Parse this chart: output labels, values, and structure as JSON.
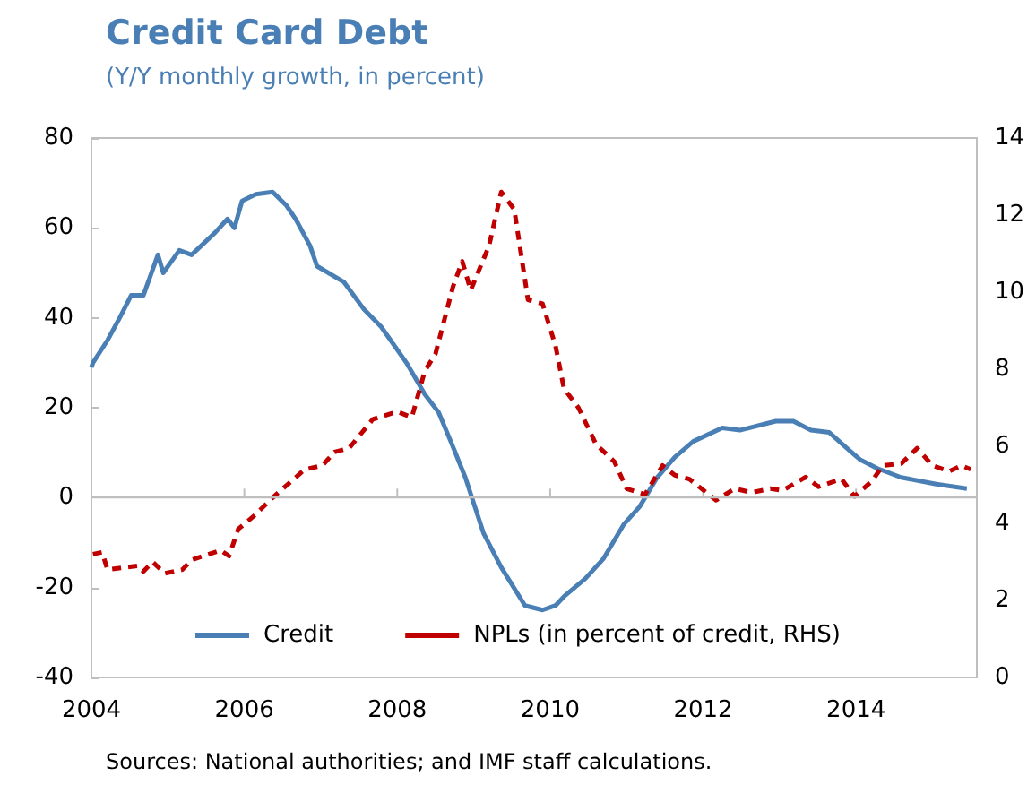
{
  "chart_data": {
    "type": "line",
    "title": "Credit Card Debt",
    "subtitle": "(Y/Y monthly growth, in percent)",
    "annotations": [
      "Sources: National authorities; and IMF staff calculations."
    ],
    "xlim": [
      2004,
      2015.58
    ],
    "xticks": [
      2004,
      2006,
      2008,
      2010,
      2012,
      2014
    ],
    "ylim": [
      -40,
      80
    ],
    "yticks": [
      -40,
      -20,
      0,
      20,
      40,
      60,
      80
    ],
    "y2lim": [
      0,
      14
    ],
    "y2ticks": [
      0,
      2,
      4,
      6,
      8,
      10,
      12,
      14
    ],
    "grid": false,
    "legend": "bottom",
    "marker": "none",
    "ref_lines": [
      {
        "axis": "y",
        "value": 0,
        "color": "#bfbfbf"
      }
    ],
    "series": [
      {
        "name": "Credit",
        "color": "#4a7fb5",
        "line_style": "solid",
        "x": [
          2004.0,
          2004.02,
          2004.21,
          2004.37,
          2004.52,
          2004.68,
          2004.87,
          2004.94,
          2005.15,
          2005.31,
          2005.62,
          2005.78,
          2005.87,
          2005.97,
          2006.15,
          2006.37,
          2006.55,
          2006.67,
          2006.86,
          2006.95,
          2007.3,
          2007.56,
          2007.79,
          2008.12,
          2008.36,
          2008.54,
          2008.7,
          2008.89,
          2009.13,
          2009.36,
          2009.67,
          2009.9,
          2010.07,
          2010.18,
          2010.46,
          2010.7,
          2010.96,
          2011.17,
          2011.4,
          2011.63,
          2011.87,
          2012.25,
          2012.48,
          2012.95,
          2013.18,
          2013.41,
          2013.65,
          2013.88,
          2014.05,
          2014.28,
          2014.59,
          2015.05,
          2015.45
        ],
        "values": [
          29,
          30,
          35,
          40,
          45,
          45,
          54,
          50,
          55,
          54,
          59,
          62,
          60,
          66,
          67.5,
          68,
          65,
          62,
          56,
          51.5,
          48,
          42,
          38,
          30,
          23,
          19,
          12.5,
          4.5,
          -8,
          -15.5,
          -24,
          -25,
          -24,
          -22,
          -18,
          -13.5,
          -6,
          -2,
          4.5,
          9,
          12.5,
          15.5,
          15,
          17,
          17,
          15,
          14.5,
          11,
          8.5,
          6.5,
          4.5,
          3,
          2
        ]
      },
      {
        "name": "NPLs (in percent of credit, RHS)",
        "color": "#c00000",
        "line_style": "dashed",
        "axis": "y2",
        "x": [
          2004.02,
          2004.14,
          2004.21,
          2004.61,
          2004.68,
          2004.8,
          2004.96,
          2005.19,
          2005.31,
          2005.69,
          2005.8,
          2005.92,
          2006.13,
          2006.39,
          2006.79,
          2007.02,
          2007.18,
          2007.37,
          2007.68,
          2008.0,
          2008.19,
          2008.36,
          2008.5,
          2008.73,
          2008.85,
          2008.96,
          2009.2,
          2009.36,
          2009.53,
          2009.71,
          2009.9,
          2010.07,
          2010.18,
          2010.37,
          2010.6,
          2010.84,
          2011.0,
          2011.24,
          2011.47,
          2011.63,
          2011.82,
          2012.17,
          2012.41,
          2012.64,
          2012.88,
          2013.04,
          2013.34,
          2013.51,
          2013.81,
          2013.98,
          2014.21,
          2014.35,
          2014.59,
          2014.8,
          2015.0,
          2015.22,
          2015.38,
          2015.5
        ],
        "values": [
          3.2,
          3.25,
          2.8,
          2.9,
          2.75,
          3.0,
          2.7,
          2.8,
          3.05,
          3.3,
          3.15,
          3.85,
          4.2,
          4.7,
          5.4,
          5.5,
          5.85,
          5.95,
          6.7,
          6.9,
          6.75,
          7.95,
          8.4,
          10.15,
          10.8,
          10.05,
          11.2,
          12.6,
          12.15,
          9.8,
          9.7,
          8.6,
          7.5,
          7.0,
          6.05,
          5.6,
          4.9,
          4.75,
          5.5,
          5.25,
          5.15,
          4.6,
          4.9,
          4.8,
          4.9,
          4.85,
          5.2,
          4.95,
          5.15,
          4.7,
          5.1,
          5.5,
          5.55,
          5.95,
          5.5,
          5.35,
          5.5,
          5.4
        ]
      }
    ]
  }
}
